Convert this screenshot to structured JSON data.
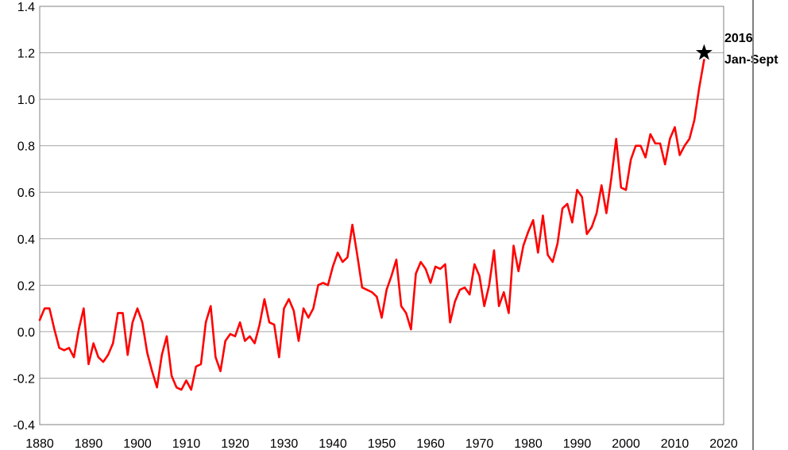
{
  "chart_data": {
    "type": "line",
    "title": "",
    "xlabel": "",
    "ylabel": "",
    "xlim": [
      1880,
      2020
    ],
    "ylim": [
      -0.4,
      1.4
    ],
    "grid": "horizontal",
    "x_ticks": [
      1880,
      1890,
      1900,
      1910,
      1920,
      1930,
      1940,
      1950,
      1960,
      1970,
      1980,
      1990,
      2000,
      2010,
      2020
    ],
    "x_tick_labels": [
      "1880",
      "1890",
      "1900",
      "1910",
      "1920",
      "1930",
      "1940",
      "1950",
      "1960",
      "1970",
      "1980",
      "1990",
      "2000",
      "2010",
      "2020"
    ],
    "y_ticks": [
      -0.4,
      -0.2,
      0.0,
      0.2,
      0.4,
      0.6,
      0.8,
      1.0,
      1.2,
      1.4
    ],
    "y_tick_labels": [
      "-0.4",
      "-0.2",
      "0.0",
      "0.2",
      "0.4",
      "0.6",
      "0.8",
      "1.0",
      "1.2",
      "1.4"
    ],
    "series": [
      {
        "color": "#ff0000",
        "x": [
          1880,
          1881,
          1882,
          1883,
          1884,
          1885,
          1886,
          1887,
          1888,
          1889,
          1890,
          1891,
          1892,
          1893,
          1894,
          1895,
          1896,
          1897,
          1898,
          1899,
          1900,
          1901,
          1902,
          1903,
          1904,
          1905,
          1906,
          1907,
          1908,
          1909,
          1910,
          1911,
          1912,
          1913,
          1914,
          1915,
          1916,
          1917,
          1918,
          1919,
          1920,
          1921,
          1922,
          1923,
          1924,
          1925,
          1926,
          1927,
          1928,
          1929,
          1930,
          1931,
          1932,
          1933,
          1934,
          1935,
          1936,
          1937,
          1938,
          1939,
          1940,
          1941,
          1942,
          1943,
          1944,
          1945,
          1946,
          1947,
          1948,
          1949,
          1950,
          1951,
          1952,
          1953,
          1954,
          1955,
          1956,
          1957,
          1958,
          1959,
          1960,
          1961,
          1962,
          1963,
          1964,
          1965,
          1966,
          1967,
          1968,
          1969,
          1970,
          1971,
          1972,
          1973,
          1974,
          1975,
          1976,
          1977,
          1978,
          1979,
          1980,
          1981,
          1982,
          1983,
          1984,
          1985,
          1986,
          1987,
          1988,
          1989,
          1990,
          1991,
          1992,
          1993,
          1994,
          1995,
          1996,
          1997,
          1998,
          1999,
          2000,
          2001,
          2002,
          2003,
          2004,
          2005,
          2006,
          2007,
          2008,
          2009,
          2010,
          2011,
          2012,
          2013,
          2014,
          2015,
          2016
        ],
        "y": [
          0.05,
          0.1,
          0.1,
          0.01,
          -0.07,
          -0.08,
          -0.07,
          -0.11,
          0.01,
          0.1,
          -0.14,
          -0.05,
          -0.11,
          -0.13,
          -0.1,
          -0.05,
          0.08,
          0.08,
          -0.1,
          0.04,
          0.1,
          0.04,
          -0.09,
          -0.17,
          -0.24,
          -0.1,
          -0.02,
          -0.19,
          -0.24,
          -0.25,
          -0.21,
          -0.25,
          -0.15,
          -0.14,
          0.04,
          0.11,
          -0.11,
          -0.17,
          -0.04,
          -0.01,
          -0.02,
          0.04,
          -0.04,
          -0.02,
          -0.05,
          0.03,
          0.14,
          0.04,
          0.03,
          -0.11,
          0.1,
          0.14,
          0.09,
          -0.04,
          0.1,
          0.06,
          0.1,
          0.2,
          0.21,
          0.2,
          0.28,
          0.34,
          0.3,
          0.32,
          0.46,
          0.33,
          0.19,
          0.18,
          0.17,
          0.15,
          0.06,
          0.18,
          0.24,
          0.31,
          0.11,
          0.08,
          0.01,
          0.25,
          0.3,
          0.27,
          0.21,
          0.28,
          0.27,
          0.29,
          0.04,
          0.13,
          0.18,
          0.19,
          0.16,
          0.29,
          0.24,
          0.11,
          0.2,
          0.35,
          0.11,
          0.17,
          0.08,
          0.37,
          0.26,
          0.37,
          0.43,
          0.48,
          0.34,
          0.5,
          0.33,
          0.3,
          0.38,
          0.53,
          0.55,
          0.47,
          0.61,
          0.58,
          0.42,
          0.45,
          0.51,
          0.63,
          0.51,
          0.66,
          0.83,
          0.62,
          0.61,
          0.74,
          0.8,
          0.8,
          0.75,
          0.85,
          0.81,
          0.81,
          0.72,
          0.83,
          0.88,
          0.76,
          0.8,
          0.83,
          0.91,
          1.05,
          1.17
        ]
      }
    ],
    "highlight": {
      "x": 2016,
      "y": 1.2,
      "marker": "star",
      "label_line1": "2016",
      "label_line2": "Jan-Sept"
    }
  }
}
